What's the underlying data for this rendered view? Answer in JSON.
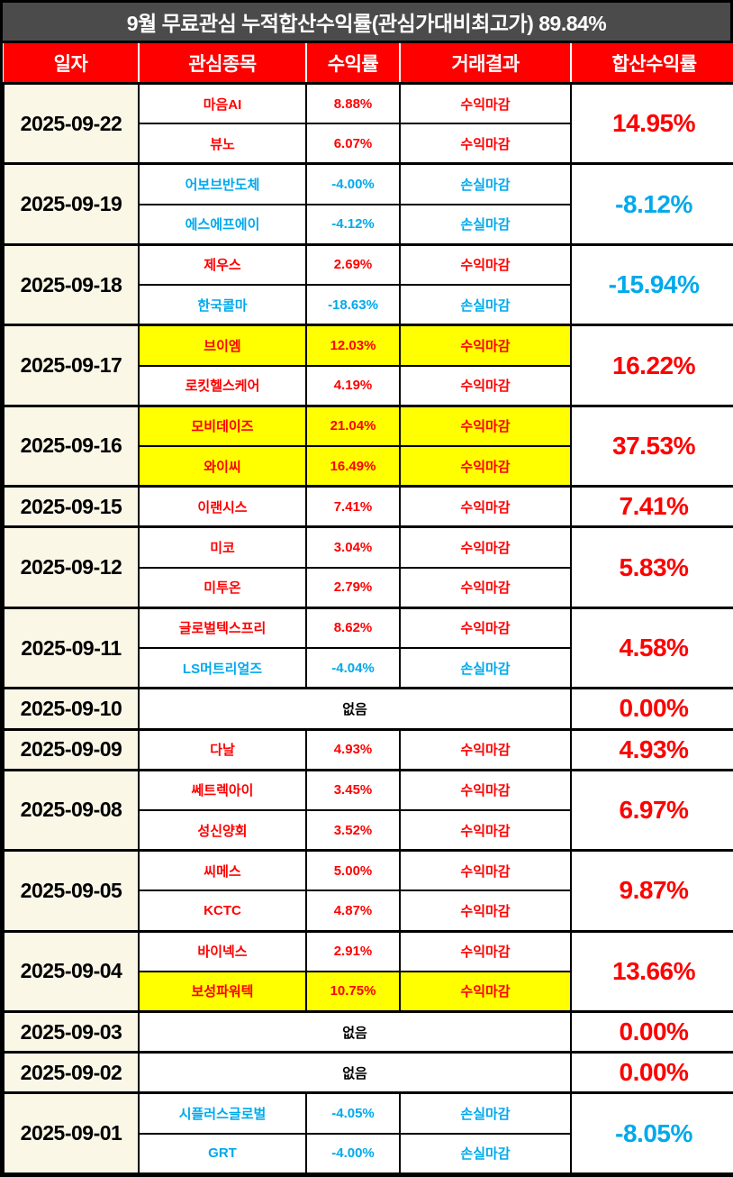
{
  "labels": {
    "none": "없음"
  },
  "colors": {
    "header_bg": "#fe0000",
    "title_bg": "#4b4b4b",
    "date_column_bg": "#fbf7e7",
    "highlight_bg": "#ffff00",
    "gain_text": "#fe0000",
    "loss_text": "#00a9ec",
    "border": "#000000",
    "header_text": "#ffffff"
  },
  "chart_data": {
    "type": "table",
    "title": "9월 무료관심 누적합산수익률(관심가대비최고가) 89.84%",
    "cumulative_total": "89.84%",
    "columns": [
      "일자",
      "관심종목",
      "수익률",
      "거래결과",
      "합산수익률"
    ],
    "groups": [
      {
        "date": "2025-09-22",
        "total_return": "14.95%",
        "direction": "gain",
        "stocks": [
          {
            "name": "마음AI",
            "return": "8.88%",
            "result": "수익마감",
            "direction": "gain",
            "highlighted": false
          },
          {
            "name": "뷰노",
            "return": "6.07%",
            "result": "수익마감",
            "direction": "gain",
            "highlighted": false
          }
        ]
      },
      {
        "date": "2025-09-19",
        "total_return": "-8.12%",
        "direction": "loss",
        "stocks": [
          {
            "name": "어보브반도체",
            "return": "-4.00%",
            "result": "손실마감",
            "direction": "loss",
            "highlighted": false
          },
          {
            "name": "에스에프에이",
            "return": "-4.12%",
            "result": "손실마감",
            "direction": "loss",
            "highlighted": false
          }
        ]
      },
      {
        "date": "2025-09-18",
        "total_return": "-15.94%",
        "direction": "loss",
        "stocks": [
          {
            "name": "제우스",
            "return": "2.69%",
            "result": "수익마감",
            "direction": "gain",
            "highlighted": false
          },
          {
            "name": "한국콜마",
            "return": "-18.63%",
            "result": "손실마감",
            "direction": "loss",
            "highlighted": false
          }
        ]
      },
      {
        "date": "2025-09-17",
        "total_return": "16.22%",
        "direction": "gain",
        "stocks": [
          {
            "name": "브이엠",
            "return": "12.03%",
            "result": "수익마감",
            "direction": "gain",
            "highlighted": true
          },
          {
            "name": "로킷헬스케어",
            "return": "4.19%",
            "result": "수익마감",
            "direction": "gain",
            "highlighted": false
          }
        ]
      },
      {
        "date": "2025-09-16",
        "total_return": "37.53%",
        "direction": "gain",
        "stocks": [
          {
            "name": "모비데이즈",
            "return": "21.04%",
            "result": "수익마감",
            "direction": "gain",
            "highlighted": true
          },
          {
            "name": "와이씨",
            "return": "16.49%",
            "result": "수익마감",
            "direction": "gain",
            "highlighted": true
          }
        ]
      },
      {
        "date": "2025-09-15",
        "total_return": "7.41%",
        "direction": "gain",
        "stocks": [
          {
            "name": "이랜시스",
            "return": "7.41%",
            "result": "수익마감",
            "direction": "gain",
            "highlighted": false
          }
        ]
      },
      {
        "date": "2025-09-12",
        "total_return": "5.83%",
        "direction": "gain",
        "stocks": [
          {
            "name": "미코",
            "return": "3.04%",
            "result": "수익마감",
            "direction": "gain",
            "highlighted": false
          },
          {
            "name": "미투온",
            "return": "2.79%",
            "result": "수익마감",
            "direction": "gain",
            "highlighted": false
          }
        ]
      },
      {
        "date": "2025-09-11",
        "total_return": "4.58%",
        "direction": "gain",
        "stocks": [
          {
            "name": "글로벌텍스프리",
            "return": "8.62%",
            "result": "수익마감",
            "direction": "gain",
            "highlighted": false
          },
          {
            "name": "LS머트리얼즈",
            "return": "-4.04%",
            "result": "손실마감",
            "direction": "loss",
            "highlighted": false
          }
        ]
      },
      {
        "date": "2025-09-10",
        "total_return": "0.00%",
        "direction": "gain",
        "stocks": []
      },
      {
        "date": "2025-09-09",
        "total_return": "4.93%",
        "direction": "gain",
        "stocks": [
          {
            "name": "다날",
            "return": "4.93%",
            "result": "수익마감",
            "direction": "gain",
            "highlighted": false
          }
        ]
      },
      {
        "date": "2025-09-08",
        "total_return": "6.97%",
        "direction": "gain",
        "stocks": [
          {
            "name": "쎄트렉아이",
            "return": "3.45%",
            "result": "수익마감",
            "direction": "gain",
            "highlighted": false
          },
          {
            "name": "성신양회",
            "return": "3.52%",
            "result": "수익마감",
            "direction": "gain",
            "highlighted": false
          }
        ]
      },
      {
        "date": "2025-09-05",
        "total_return": "9.87%",
        "direction": "gain",
        "stocks": [
          {
            "name": "씨메스",
            "return": "5.00%",
            "result": "수익마감",
            "direction": "gain",
            "highlighted": false
          },
          {
            "name": "KCTC",
            "return": "4.87%",
            "result": "수익마감",
            "direction": "gain",
            "highlighted": false
          }
        ]
      },
      {
        "date": "2025-09-04",
        "total_return": "13.66%",
        "direction": "gain",
        "stocks": [
          {
            "name": "바이넥스",
            "return": "2.91%",
            "result": "수익마감",
            "direction": "gain",
            "highlighted": false
          },
          {
            "name": "보성파워텍",
            "return": "10.75%",
            "result": "수익마감",
            "direction": "gain",
            "highlighted": true
          }
        ]
      },
      {
        "date": "2025-09-03",
        "total_return": "0.00%",
        "direction": "gain",
        "stocks": []
      },
      {
        "date": "2025-09-02",
        "total_return": "0.00%",
        "direction": "gain",
        "stocks": []
      },
      {
        "date": "2025-09-01",
        "total_return": "-8.05%",
        "direction": "loss",
        "stocks": [
          {
            "name": "시플러스글로벌",
            "return": "-4.05%",
            "result": "손실마감",
            "direction": "loss",
            "highlighted": false
          },
          {
            "name": "GRT",
            "return": "-4.00%",
            "result": "손실마감",
            "direction": "loss",
            "highlighted": false
          }
        ]
      }
    ]
  }
}
